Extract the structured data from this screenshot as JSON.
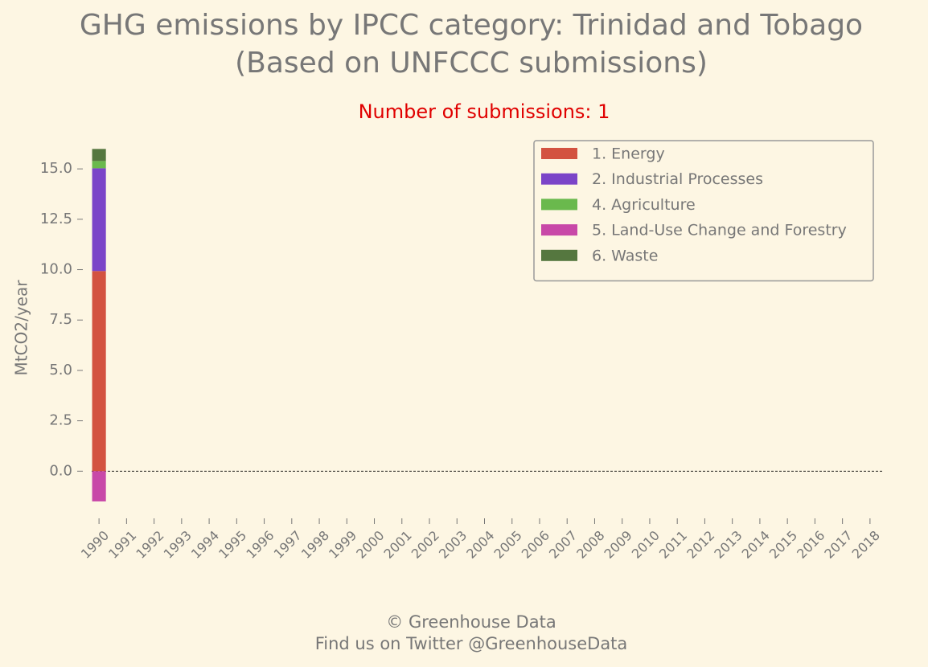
{
  "chart_data": {
    "type": "bar",
    "stacked": true,
    "title": [
      "GHG emissions by IPCC category: Trinidad and Tobago",
      "(Based on UNFCCC submissions)"
    ],
    "subtitle": "Number of submissions: 1",
    "ylabel": "MtCO2/year",
    "footer": [
      "© Greenhouse Data",
      "Find us on Twitter @GreenhouseData"
    ],
    "categories": [
      "1990",
      "1991",
      "1992",
      "1993",
      "1994",
      "1995",
      "1996",
      "1997",
      "1998",
      "1999",
      "2000",
      "2001",
      "2002",
      "2003",
      "2004",
      "2005",
      "2006",
      "2007",
      "2008",
      "2009",
      "2010",
      "2011",
      "2012",
      "2013",
      "2014",
      "2015",
      "2016",
      "2017",
      "2018"
    ],
    "series": [
      {
        "name": "1. Energy",
        "color": "#d35240",
        "values": [
          9.93,
          null,
          null,
          null,
          null,
          null,
          null,
          null,
          null,
          null,
          null,
          null,
          null,
          null,
          null,
          null,
          null,
          null,
          null,
          null,
          null,
          null,
          null,
          null,
          null,
          null,
          null,
          null,
          null
        ]
      },
      {
        "name": "2. Industrial Processes",
        "color": "#7b44c8",
        "values": [
          5.1,
          null,
          null,
          null,
          null,
          null,
          null,
          null,
          null,
          null,
          null,
          null,
          null,
          null,
          null,
          null,
          null,
          null,
          null,
          null,
          null,
          null,
          null,
          null,
          null,
          null,
          null,
          null,
          null
        ]
      },
      {
        "name": "4. Agriculture",
        "color": "#6ab94d",
        "values": [
          0.36,
          null,
          null,
          null,
          null,
          null,
          null,
          null,
          null,
          null,
          null,
          null,
          null,
          null,
          null,
          null,
          null,
          null,
          null,
          null,
          null,
          null,
          null,
          null,
          null,
          null,
          null,
          null,
          null
        ]
      },
      {
        "name": "5. Land-Use Change and Forestry",
        "color": "#c848a8",
        "values": [
          -1.5,
          null,
          null,
          null,
          null,
          null,
          null,
          null,
          null,
          null,
          null,
          null,
          null,
          null,
          null,
          null,
          null,
          null,
          null,
          null,
          null,
          null,
          null,
          null,
          null,
          null,
          null,
          null,
          null
        ]
      },
      {
        "name": "6. Waste",
        "color": "#55773f",
        "values": [
          0.6,
          null,
          null,
          null,
          null,
          null,
          null,
          null,
          null,
          null,
          null,
          null,
          null,
          null,
          null,
          null,
          null,
          null,
          null,
          null,
          null,
          null,
          null,
          null,
          null,
          null,
          null,
          null,
          null
        ]
      }
    ],
    "ylim": [
      -2.3,
      16.8
    ],
    "yticks": [
      {
        "value": 0,
        "label": "0.0"
      },
      2.5,
      {
        "value": 5,
        "label": "5.0"
      },
      7.5,
      {
        "value": 10,
        "label": "10.0"
      },
      12.5,
      {
        "value": 15,
        "label": "15.0"
      }
    ],
    "legend": "upper right",
    "grid": false
  }
}
